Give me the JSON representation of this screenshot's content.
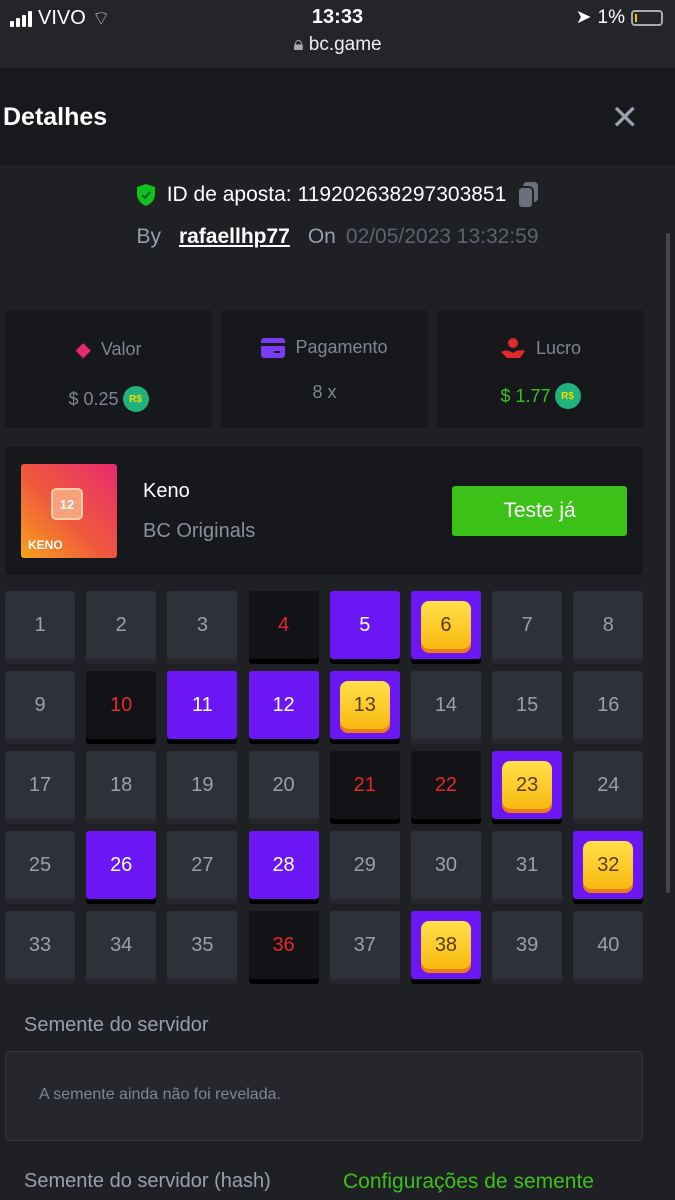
{
  "statusbar": {
    "carrier": "VIVO",
    "time": "13:33",
    "url": "bc.game",
    "battery": "1%"
  },
  "header": {
    "title": "Detalhes",
    "close": "✕"
  },
  "bet": {
    "id_label": "ID de aposta:",
    "id": "119202638297303851",
    "by_label": "By",
    "user": "rafaellhp77",
    "on_label": "On",
    "date": "02/05/2023 13:32:59"
  },
  "stats": [
    {
      "label": "Valor",
      "value": "$ 0.25",
      "currency": "R$",
      "color": "#80868f",
      "icon_color": "#e5286f"
    },
    {
      "label": "Pagamento",
      "value": "8 x",
      "color": "#80868f",
      "icon_color": "#7b3bf5"
    },
    {
      "label": "Lucro",
      "value": "$ 1.77",
      "currency": "R$",
      "color": "#3bc117",
      "icon_color": "#e02a2a"
    }
  ],
  "game": {
    "name": "Keno",
    "provider": "BC Originals",
    "button": "Teste já",
    "thumb_number": "12",
    "thumb_label": "KENO"
  },
  "keno": {
    "selected": [
      5,
      11,
      12,
      26,
      28
    ],
    "hits": [
      6,
      13,
      23,
      32,
      38
    ],
    "drawn_miss": [
      4,
      10,
      21,
      22,
      36
    ],
    "total": 40
  },
  "server_seed": {
    "label": "Semente do servidor",
    "value": "A semente ainda não foi revelada."
  },
  "server_seed_hash": {
    "label": "Semente do servidor (hash)",
    "link": "Configurações de semente"
  }
}
